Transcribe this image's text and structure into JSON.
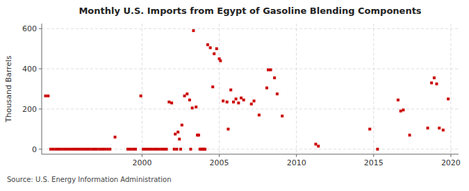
{
  "chart_data": {
    "type": "scatter",
    "title": "Monthly U.S. Imports from Egypt of Gasoline Blending Components",
    "ylabel": "Thousand Barrels",
    "annotations": [
      "Source: U.S. Energy Information Administration"
    ],
    "color": "#cc0000",
    "marker": "square",
    "grid": true,
    "xlim": [
      1993.5,
      2020.5
    ],
    "ylim": [
      -25,
      625
    ],
    "xticks": [
      2000,
      2005,
      2010,
      2015,
      2020
    ],
    "yticks": [
      0,
      200,
      400,
      600
    ],
    "x": [
      1993.75,
      1993.92,
      1994.08,
      1994.25,
      1994.42,
      1994.58,
      1994.75,
      1994.92,
      1995.08,
      1995.25,
      1995.42,
      1995.58,
      1995.75,
      1995.92,
      1996.08,
      1996.25,
      1996.42,
      1996.58,
      1996.75,
      1996.92,
      1997.08,
      1997.25,
      1997.42,
      1997.58,
      1997.75,
      1997.92,
      1998.25,
      1999.08,
      1999.25,
      1999.42,
      1999.58,
      1999.92,
      2000.08,
      2000.25,
      2000.42,
      2000.58,
      2000.75,
      2000.92,
      2001.08,
      2001.25,
      2001.42,
      2001.58,
      2001.75,
      2001.92,
      2002.08,
      2002.15,
      2002.25,
      2002.33,
      2002.42,
      2002.5,
      2002.58,
      2002.75,
      2002.92,
      2003.08,
      2003.15,
      2003.25,
      2003.33,
      2003.5,
      2003.58,
      2003.67,
      2003.75,
      2003.83,
      2003.92,
      2004.0,
      2004.08,
      2004.25,
      2004.42,
      2004.58,
      2004.67,
      2004.83,
      2005.0,
      2005.08,
      2005.25,
      2005.5,
      2005.58,
      2005.75,
      2005.92,
      2006.08,
      2006.25,
      2006.42,
      2006.58,
      2007.08,
      2007.25,
      2007.58,
      2008.08,
      2008.17,
      2008.33,
      2008.58,
      2008.75,
      2009.08,
      2011.25,
      2011.42,
      2014.75,
      2015.25,
      2016.58,
      2016.75,
      2016.92,
      2017.33,
      2018.5,
      2018.75,
      2018.92,
      2019.08,
      2019.25,
      2019.5,
      2019.83
    ],
    "values": [
      265,
      265,
      0,
      0,
      0,
      0,
      0,
      0,
      0,
      0,
      0,
      0,
      0,
      0,
      0,
      0,
      0,
      0,
      0,
      0,
      0,
      0,
      0,
      0,
      0,
      0,
      60,
      0,
      0,
      0,
      0,
      265,
      0,
      0,
      0,
      0,
      0,
      0,
      0,
      0,
      0,
      0,
      235,
      230,
      0,
      75,
      0,
      85,
      50,
      0,
      120,
      265,
      275,
      245,
      0,
      205,
      590,
      210,
      70,
      70,
      0,
      0,
      0,
      0,
      0,
      520,
      505,
      310,
      475,
      500,
      450,
      440,
      240,
      235,
      100,
      295,
      235,
      250,
      230,
      255,
      245,
      225,
      240,
      170,
      305,
      395,
      395,
      355,
      275,
      165,
      25,
      15,
      100,
      0,
      245,
      190,
      195,
      70,
      105,
      330,
      355,
      325,
      105,
      95,
      250
    ]
  }
}
